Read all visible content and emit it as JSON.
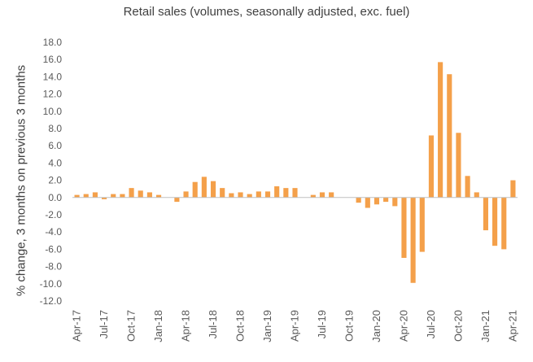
{
  "chart_data": {
    "type": "bar",
    "title": "Retail sales (volumes, seasonally adjusted, exc. fuel)",
    "xlabel": "",
    "ylabel": "% change, 3 months on previous 3 months",
    "ylim": [
      -12,
      18
    ],
    "y_ticks": [
      "18.0",
      "16.0",
      "14.0",
      "12.0",
      "10.0",
      "8.0",
      "6.0",
      "4.0",
      "2.0",
      "0.0",
      "-2.0",
      "-4.0",
      "-6.0",
      "-8.0",
      "-10.0",
      "-12.0"
    ],
    "grid": false,
    "legend": "none",
    "bar_color": "#F4A04A",
    "axis_color": "#BFBFBF",
    "categories": [
      "Apr-17",
      "May-17",
      "Jun-17",
      "Jul-17",
      "Aug-17",
      "Sep-17",
      "Oct-17",
      "Nov-17",
      "Dec-17",
      "Jan-18",
      "Feb-18",
      "Mar-18",
      "Apr-18",
      "May-18",
      "Jun-18",
      "Jul-18",
      "Aug-18",
      "Sep-18",
      "Oct-18",
      "Nov-18",
      "Dec-18",
      "Jan-19",
      "Feb-19",
      "Mar-19",
      "Apr-19",
      "May-19",
      "Jun-19",
      "Jul-19",
      "Aug-19",
      "Sep-19",
      "Oct-19",
      "Nov-19",
      "Dec-19",
      "Jan-20",
      "Feb-20",
      "Mar-20",
      "Apr-20",
      "May-20",
      "Jun-20",
      "Jul-20",
      "Aug-20",
      "Sep-20",
      "Oct-20",
      "Nov-20",
      "Dec-20",
      "Jan-21",
      "Feb-21",
      "Mar-21",
      "Apr-21"
    ],
    "values": [
      0.3,
      0.4,
      0.6,
      -0.2,
      0.4,
      0.4,
      1.1,
      0.8,
      0.6,
      0.3,
      0.0,
      -0.5,
      0.7,
      1.8,
      2.4,
      1.9,
      1.1,
      0.5,
      0.6,
      0.4,
      0.7,
      0.7,
      1.3,
      1.1,
      1.1,
      0.0,
      0.3,
      0.6,
      0.6,
      0.0,
      0.0,
      -0.6,
      -1.2,
      -0.8,
      -0.5,
      -1.0,
      -7.0,
      -9.9,
      -6.3,
      7.2,
      15.7,
      14.3,
      7.5,
      2.5,
      0.6,
      -3.8,
      -5.6,
      -6.0,
      2.0
    ],
    "x_tick_labels": [
      "Apr-17",
      "Jul-17",
      "Oct-17",
      "Jan-18",
      "Apr-18",
      "Jul-18",
      "Oct-18",
      "Jan-19",
      "Apr-19",
      "Jul-19",
      "Oct-19",
      "Jan-20",
      "Apr-20",
      "Jul-20",
      "Oct-20",
      "Jan-21",
      "Apr-21"
    ]
  }
}
